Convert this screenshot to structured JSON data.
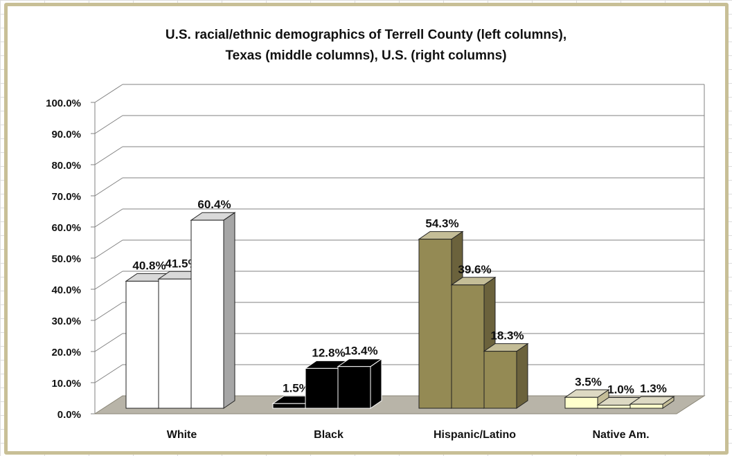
{
  "chart_data": {
    "type": "bar",
    "title_line1": "U.S. racial/ethnic demographics of Terrell County (left columns),",
    "title_line2": "Texas (middle columns), U.S. (right columns)",
    "categories": [
      "White",
      "Black",
      "Hispanic/Latino",
      "Native Am."
    ],
    "series": [
      {
        "values": [
          40.8,
          1.5,
          54.3,
          3.5
        ]
      },
      {
        "values": [
          41.5,
          12.8,
          39.6,
          1.0
        ]
      },
      {
        "values": [
          60.4,
          13.4,
          18.3,
          1.3
        ]
      }
    ],
    "data_labels": [
      [
        "40.8%",
        "41.5%",
        "60.4%"
      ],
      [
        "1.5%",
        "12.8%",
        "13.4%"
      ],
      [
        "54.3%",
        "39.6%",
        "18.3%"
      ],
      [
        "3.5%",
        "1.0%",
        "1.3%"
      ]
    ],
    "yticks": [
      "0.0%",
      "10.0%",
      "20.0%",
      "30.0%",
      "40.0%",
      "50.0%",
      "60.0%",
      "70.0%",
      "80.0%",
      "90.0%",
      "100.0%"
    ],
    "ylim": [
      0,
      100
    ],
    "colors": {
      "White": [
        "#ffffff",
        "#d9d9d9",
        "#a6a6a6"
      ],
      "Black": [
        "#000000",
        "#000000",
        "#000000"
      ],
      "Hispanic/Latino": [
        "#948a54",
        "#c4bd97",
        "#6b623c"
      ],
      "Native Am.": [
        "#ffffcc",
        "#ddd9c3",
        "#c4bd97"
      ]
    },
    "grid": true,
    "legend": "none"
  }
}
